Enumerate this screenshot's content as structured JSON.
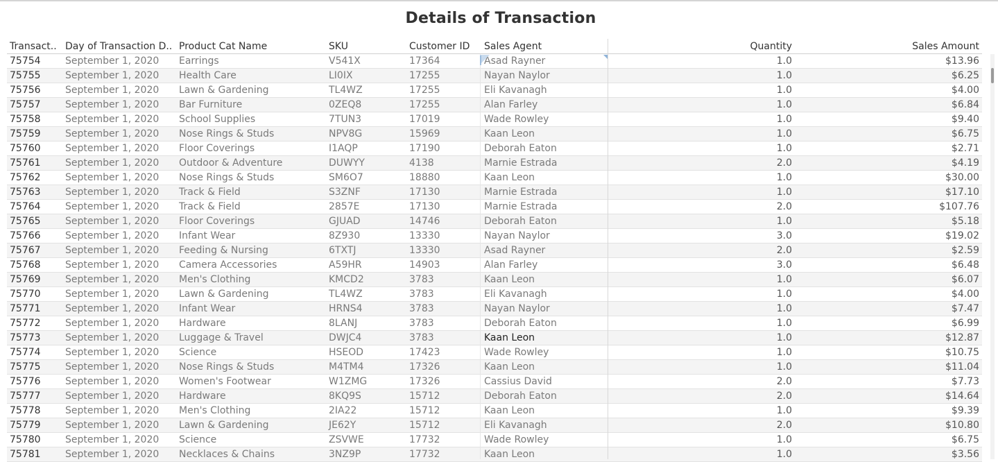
{
  "title": "Details of Transaction",
  "columns": {
    "transaction": "Transact..",
    "day": "Day of Transaction D..",
    "category": "Product Cat Name",
    "sku": "SKU",
    "customer": "Customer ID",
    "agent": "Sales Agent",
    "quantity": "Quantity",
    "sales": "Sales Amount"
  },
  "rows": [
    {
      "id": "75754",
      "day": "September 1, 2020",
      "cat": "Earrings",
      "sku": "V541X",
      "cust": "17364",
      "agent": "Asad Rayner",
      "qty": "1.0",
      "sales": "$13.96"
    },
    {
      "id": "75755",
      "day": "September 1, 2020",
      "cat": "Health Care",
      "sku": "LI0IX",
      "cust": "17255",
      "agent": "Nayan Naylor",
      "qty": "1.0",
      "sales": "$6.25"
    },
    {
      "id": "75756",
      "day": "September 1, 2020",
      "cat": "Lawn & Gardening",
      "sku": "TL4WZ",
      "cust": "17255",
      "agent": "Eli Kavanagh",
      "qty": "1.0",
      "sales": "$4.00"
    },
    {
      "id": "75757",
      "day": "September 1, 2020",
      "cat": "Bar Furniture",
      "sku": "0ZEQ8",
      "cust": "17255",
      "agent": "Alan Farley",
      "qty": "1.0",
      "sales": "$6.84"
    },
    {
      "id": "75758",
      "day": "September 1, 2020",
      "cat": "School Supplies",
      "sku": "7TUN3",
      "cust": "17019",
      "agent": "Wade Rowley",
      "qty": "1.0",
      "sales": "$9.40"
    },
    {
      "id": "75759",
      "day": "September 1, 2020",
      "cat": "Nose Rings & Studs",
      "sku": "NPV8G",
      "cust": "15969",
      "agent": "Kaan Leon",
      "qty": "1.0",
      "sales": "$6.75"
    },
    {
      "id": "75760",
      "day": "September 1, 2020",
      "cat": "Floor Coverings",
      "sku": "I1AQP",
      "cust": "17190",
      "agent": "Deborah Eaton",
      "qty": "1.0",
      "sales": "$2.71"
    },
    {
      "id": "75761",
      "day": "September 1, 2020",
      "cat": "Outdoor & Adventure",
      "sku": "DUWYY",
      "cust": "4138",
      "agent": "Marnie Estrada",
      "qty": "2.0",
      "sales": "$4.19"
    },
    {
      "id": "75762",
      "day": "September 1, 2020",
      "cat": "Nose Rings & Studs",
      "sku": "SM6O7",
      "cust": "18880",
      "agent": "Kaan Leon",
      "qty": "1.0",
      "sales": "$30.00"
    },
    {
      "id": "75763",
      "day": "September 1, 2020",
      "cat": "Track & Field",
      "sku": "S3ZNF",
      "cust": "17130",
      "agent": "Marnie Estrada",
      "qty": "1.0",
      "sales": "$17.10"
    },
    {
      "id": "75764",
      "day": "September 1, 2020",
      "cat": "Track & Field",
      "sku": "2857E",
      "cust": "17130",
      "agent": "Marnie Estrada",
      "qty": "2.0",
      "sales": "$107.76"
    },
    {
      "id": "75765",
      "day": "September 1, 2020",
      "cat": "Floor Coverings",
      "sku": "GJUAD",
      "cust": "14746",
      "agent": "Deborah Eaton",
      "qty": "1.0",
      "sales": "$5.18"
    },
    {
      "id": "75766",
      "day": "September 1, 2020",
      "cat": "Infant Wear",
      "sku": "8Z930",
      "cust": "13330",
      "agent": "Nayan Naylor",
      "qty": "3.0",
      "sales": "$19.02"
    },
    {
      "id": "75767",
      "day": "September 1, 2020",
      "cat": "Feeding & Nursing",
      "sku": "6TXTJ",
      "cust": "13330",
      "agent": "Asad Rayner",
      "qty": "2.0",
      "sales": "$2.59"
    },
    {
      "id": "75768",
      "day": "September 1, 2020",
      "cat": "Camera Accessories",
      "sku": "A59HR",
      "cust": "14903",
      "agent": "Alan Farley",
      "qty": "3.0",
      "sales": "$6.48"
    },
    {
      "id": "75769",
      "day": "September 1, 2020",
      "cat": "Men's Clothing",
      "sku": "KMCD2",
      "cust": "3783",
      "agent": "Kaan Leon",
      "qty": "1.0",
      "sales": "$6.07"
    },
    {
      "id": "75770",
      "day": "September 1, 2020",
      "cat": "Lawn & Gardening",
      "sku": "TL4WZ",
      "cust": "3783",
      "agent": "Eli Kavanagh",
      "qty": "1.0",
      "sales": "$4.00"
    },
    {
      "id": "75771",
      "day": "September 1, 2020",
      "cat": "Infant Wear",
      "sku": "HRNS4",
      "cust": "3783",
      "agent": "Nayan Naylor",
      "qty": "1.0",
      "sales": "$7.47"
    },
    {
      "id": "75772",
      "day": "September 1, 2020",
      "cat": "Hardware",
      "sku": "8LANJ",
      "cust": "3783",
      "agent": "Deborah Eaton",
      "qty": "1.0",
      "sales": "$6.99"
    },
    {
      "id": "75773",
      "day": "September 1, 2020",
      "cat": "Luggage & Travel",
      "sku": "DWJC4",
      "cust": "3783",
      "agent": "Kaan Leon",
      "qty": "1.0",
      "sales": "$12.87"
    },
    {
      "id": "75774",
      "day": "September 1, 2020",
      "cat": "Science",
      "sku": "HSEOD",
      "cust": "17423",
      "agent": "Wade Rowley",
      "qty": "1.0",
      "sales": "$10.75"
    },
    {
      "id": "75775",
      "day": "September 1, 2020",
      "cat": "Nose Rings & Studs",
      "sku": "M4TM4",
      "cust": "17326",
      "agent": "Kaan Leon",
      "qty": "1.0",
      "sales": "$11.04"
    },
    {
      "id": "75776",
      "day": "September 1, 2020",
      "cat": "Women's Footwear",
      "sku": "W1ZMG",
      "cust": "17326",
      "agent": "Cassius David",
      "qty": "2.0",
      "sales": "$7.73"
    },
    {
      "id": "75777",
      "day": "September 1, 2020",
      "cat": "Hardware",
      "sku": "8KQ9S",
      "cust": "15712",
      "agent": "Deborah Eaton",
      "qty": "2.0",
      "sales": "$14.64"
    },
    {
      "id": "75778",
      "day": "September 1, 2020",
      "cat": "Men's Clothing",
      "sku": "2IA22",
      "cust": "15712",
      "agent": "Kaan Leon",
      "qty": "1.0",
      "sales": "$9.39"
    },
    {
      "id": "75779",
      "day": "September 1, 2020",
      "cat": "Lawn & Gardening",
      "sku": "JE62Y",
      "cust": "15712",
      "agent": "Eli Kavanagh",
      "qty": "2.0",
      "sales": "$10.80"
    },
    {
      "id": "75780",
      "day": "September 1, 2020",
      "cat": "Science",
      "sku": "ZSVWE",
      "cust": "17732",
      "agent": "Wade Rowley",
      "qty": "1.0",
      "sales": "$6.75"
    },
    {
      "id": "75781",
      "day": "September 1, 2020",
      "cat": "Necklaces & Chains",
      "sku": "3NZ9P",
      "cust": "17732",
      "agent": "Kaan Leon",
      "qty": "1.0",
      "sales": "$3.56"
    }
  ],
  "colors": {
    "row_alt": "#f4f4f4",
    "text_dim": "#7a7a7a",
    "text_main": "#333333",
    "selection_accent": "#8fb3d9"
  }
}
